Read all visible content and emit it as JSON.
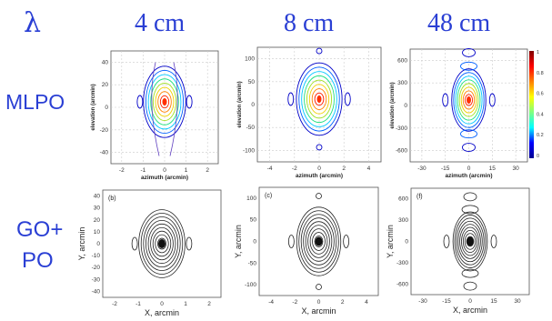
{
  "labels": {
    "lambda": "λ",
    "columns": [
      "4 cm",
      "8 cm",
      "48 cm"
    ],
    "row1": "MLPO",
    "row2_line1": "GO+",
    "row2_line2": "PO"
  },
  "colorbar_ticks": [
    "1",
    "0.8",
    "0.6",
    "0.4",
    "0.2",
    "0"
  ],
  "colors": {
    "label": "#2a3fd4",
    "contour_dark": "#222222"
  },
  "panels": [
    {
      "id": "mlpo-4",
      "tag": "",
      "xlabel": "azimuth (arcmin)",
      "ylabel": "elevation (arcmin)",
      "xticks": [
        "-2",
        "-1",
        "0",
        "1",
        "2"
      ],
      "yticks": [
        "40",
        "20",
        "0",
        "-20",
        "-40"
      ],
      "chart_data": {
        "type": "contour",
        "xlim": [
          -2.5,
          2.5
        ],
        "ylim": [
          -50,
          50
        ],
        "grid": true,
        "colormap": "jet"
      }
    },
    {
      "id": "mlpo-8",
      "tag": "",
      "xlabel": "azimuth (arcmin)",
      "ylabel": "elevation (arcmin)",
      "xticks": [
        "-4",
        "-2",
        "0",
        "2",
        "4"
      ],
      "yticks": [
        "100",
        "50",
        "0",
        "-50",
        "-100"
      ],
      "chart_data": {
        "type": "contour",
        "xlim": [
          -5,
          5
        ],
        "ylim": [
          -100,
          100
        ],
        "grid": true,
        "colormap": "jet"
      }
    },
    {
      "id": "mlpo-48",
      "tag": "",
      "xlabel": "azimuth (arcmin)",
      "ylabel": "elevation (arcmin)",
      "xticks": [
        "-30",
        "-15",
        "0",
        "15",
        "30"
      ],
      "yticks": [
        "600",
        "300",
        "0",
        "-300",
        "-600"
      ],
      "chart_data": {
        "type": "contour",
        "xlim": [
          -30,
          30
        ],
        "ylim": [
          -600,
          600
        ],
        "grid": true,
        "colormap": "jet"
      }
    },
    {
      "id": "gopo-4",
      "tag": "(b)",
      "xlabel": "X, arcmin",
      "ylabel": "Y, arcmin",
      "xticks": [
        "-2",
        "-1",
        "0",
        "1",
        "2"
      ],
      "yticks": [
        "40",
        "30",
        "20",
        "10",
        "0",
        "-10",
        "-20",
        "-30",
        "-40"
      ],
      "chart_data": {
        "type": "contour",
        "xlim": [
          -2.5,
          2.5
        ],
        "ylim": [
          -50,
          50
        ],
        "grid": false,
        "colormap": "black"
      }
    },
    {
      "id": "gopo-8",
      "tag": "(c)",
      "xlabel": "X, arcmin",
      "ylabel": "Y, arcmin",
      "xticks": [
        "-4",
        "-2",
        "0",
        "2",
        "4"
      ],
      "yticks": [
        "100",
        "50",
        "0",
        "-50",
        "-100"
      ],
      "chart_data": {
        "type": "contour",
        "xlim": [
          -5,
          5
        ],
        "ylim": [
          -100,
          100
        ],
        "grid": false,
        "colormap": "black"
      }
    },
    {
      "id": "gopo-48",
      "tag": "(f)",
      "xlabel": "X, arcmin",
      "ylabel": "Y, arcmin",
      "xticks": [
        "-30",
        "-15",
        "0",
        "15",
        "30"
      ],
      "yticks": [
        "600",
        "300",
        "0",
        "-300",
        "-600"
      ],
      "chart_data": {
        "type": "contour",
        "xlim": [
          -30,
          30
        ],
        "ylim": [
          -600,
          600
        ],
        "grid": false,
        "colormap": "black"
      }
    }
  ]
}
